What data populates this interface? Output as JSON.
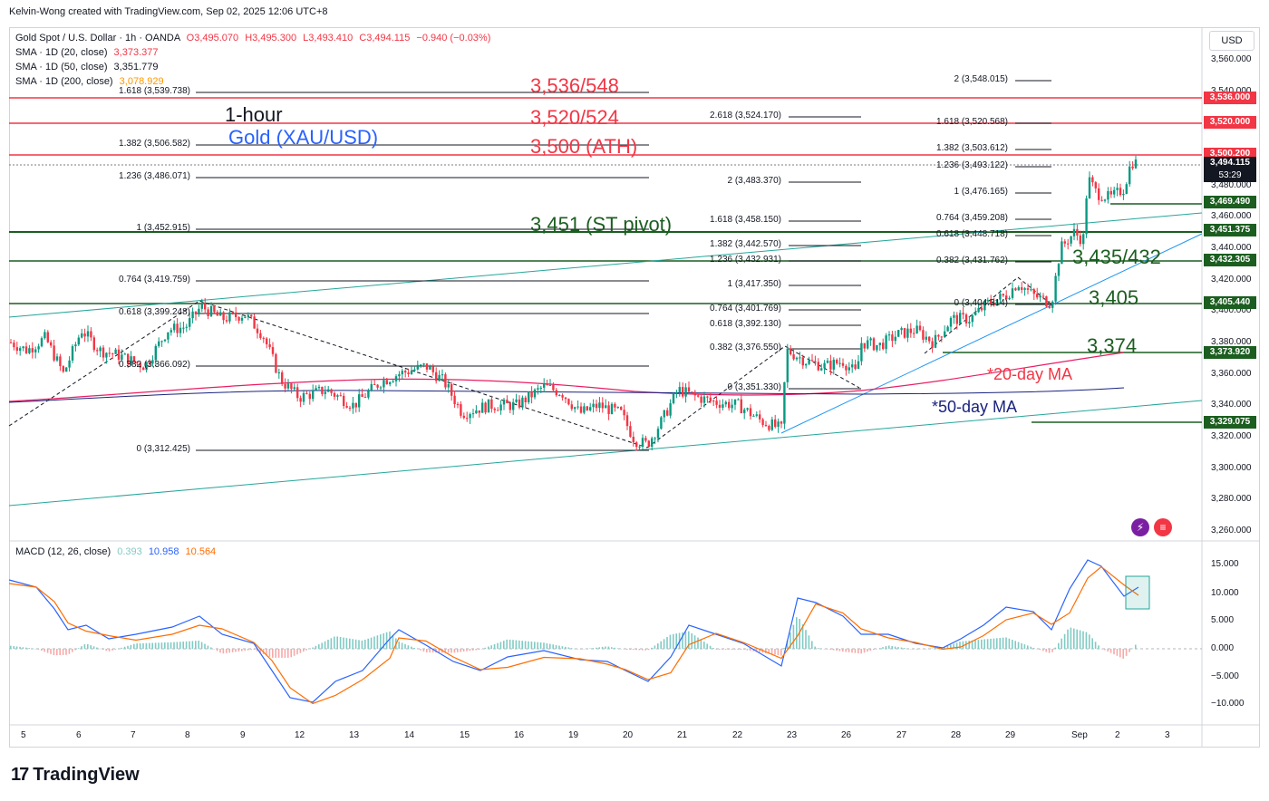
{
  "header": {
    "credit": "Kelvin-Wong created with TradingView.com, Sep 02, 2025 12:06 UTC+8"
  },
  "symbol_legend": {
    "name": "Gold Spot / U.S. Dollar · 1h · OANDA",
    "o": "O3,495.070",
    "h": "H3,495.300",
    "l": "L3,493.410",
    "c": "C3,494.115",
    "chg": "−0.940 (−0.03%)",
    "color_down": "#f23645"
  },
  "sma_legends": [
    {
      "label": "SMA · 1D (20, close)",
      "value": "3,373.377",
      "color": "#f23645"
    },
    {
      "label": "SMA · 1D (50, close)",
      "value": "3,351.779",
      "color": "#131722"
    },
    {
      "label": "SMA · 1D (200, close)",
      "value": "3,078.929",
      "color": "#ff9800"
    }
  ],
  "currency": "USD",
  "price_axis": [
    "3,560.000",
    "3,540.000",
    "3,520.000",
    "3,500.000",
    "3,480.000",
    "3,460.000",
    "3,440.000",
    "3,420.000",
    "3,400.000",
    "3,380.000",
    "3,360.000",
    "3,340.000",
    "3,320.000",
    "3,300.000",
    "3,280.000",
    "3,260.000"
  ],
  "price_labels": [
    {
      "text": "3,536.000",
      "color": "#f23645"
    },
    {
      "text": "3,520.000",
      "color": "#f23645"
    },
    {
      "text": "3,500.200",
      "color": "#f23645"
    },
    {
      "text": "3,494.115",
      "sub": "53:29",
      "color": "#131722"
    },
    {
      "text": "3,469.490",
      "color": "#1b5e20"
    },
    {
      "text": "3,451.375",
      "color": "#1b5e20"
    },
    {
      "text": "3,432.305",
      "color": "#1b5e20"
    },
    {
      "text": "3,405.440",
      "color": "#1b5e20"
    },
    {
      "text": "3,373.920",
      "color": "#1b5e20"
    },
    {
      "text": "3,329.075",
      "color": "#1b5e20"
    }
  ],
  "macd_axis": [
    "15.000",
    "10.000",
    "5.000",
    "0.000",
    "−5.000",
    "−10.000"
  ],
  "macd_legend": {
    "label": "MACD (12, 26, close)",
    "hist": "0.393",
    "macd": "10.958",
    "signal": "10.564"
  },
  "date_axis": [
    "5",
    "6",
    "7",
    "8",
    "9",
    "12",
    "13",
    "14",
    "15",
    "16",
    "19",
    "20",
    "21",
    "22",
    "23",
    "26",
    "27",
    "28",
    "29",
    "Sep",
    "2",
    "3"
  ],
  "fib_left": [
    "1.618 (3,539.738)",
    "1.382 (3,506.582)",
    "1.236 (3,486.071)",
    "1 (3,452.915)",
    "0.764 (3,419.759)",
    "0.618 (3,399.248)",
    "0.382 (3,366.092)",
    "0 (3,312.425)"
  ],
  "fib_mid": [
    "2.618 (3,524.170)",
    "2 (3,483.370)",
    "1.618 (3,458.150)",
    "1.382 (3,442.570)",
    "1.236 (3,432.931)",
    "1 (3,417.350)",
    "0.764 (3,401.769)",
    "0.618 (3,392.130)",
    "0.382 (3,376.550)",
    "0 (3,351.330)"
  ],
  "fib_right": [
    "2 (3,548.015)",
    "1.618 (3,520.568)",
    "1.382 (3,503.612)",
    "1.236 (3,493.122)",
    "1 (3,476.165)",
    "0.764 (3,459.208)",
    "0.618 (3,448.718)",
    "0.382 (3,431.762)",
    "0 (3,404.314)"
  ],
  "annotations": {
    "timeframe": "1-hour",
    "instrument": "Gold (XAU/USD)",
    "level_536": "3,536/548",
    "level_520": "3,520/524",
    "level_ath": "3,500 (ATH)",
    "level_pivot": "3,451 (ST pivot)",
    "level_435": "3,435/432",
    "level_405": "3,405",
    "level_374": "3,374",
    "ma20": "*20-day MA",
    "ma50": "*50-day MA"
  },
  "brand": {
    "name": "TradingView",
    "mark": "17"
  },
  "icons": [
    "lightning-icon",
    "flag-icon"
  ],
  "colors": {
    "up": "#089981",
    "down": "#f23645",
    "resistance": "#f23645",
    "support": "#1b5e20",
    "trendline": "#26a69a",
    "ma20": "#e91e63",
    "ma50": "#1a237e",
    "macd": "#2962ff",
    "signal": "#ff6d00"
  }
}
